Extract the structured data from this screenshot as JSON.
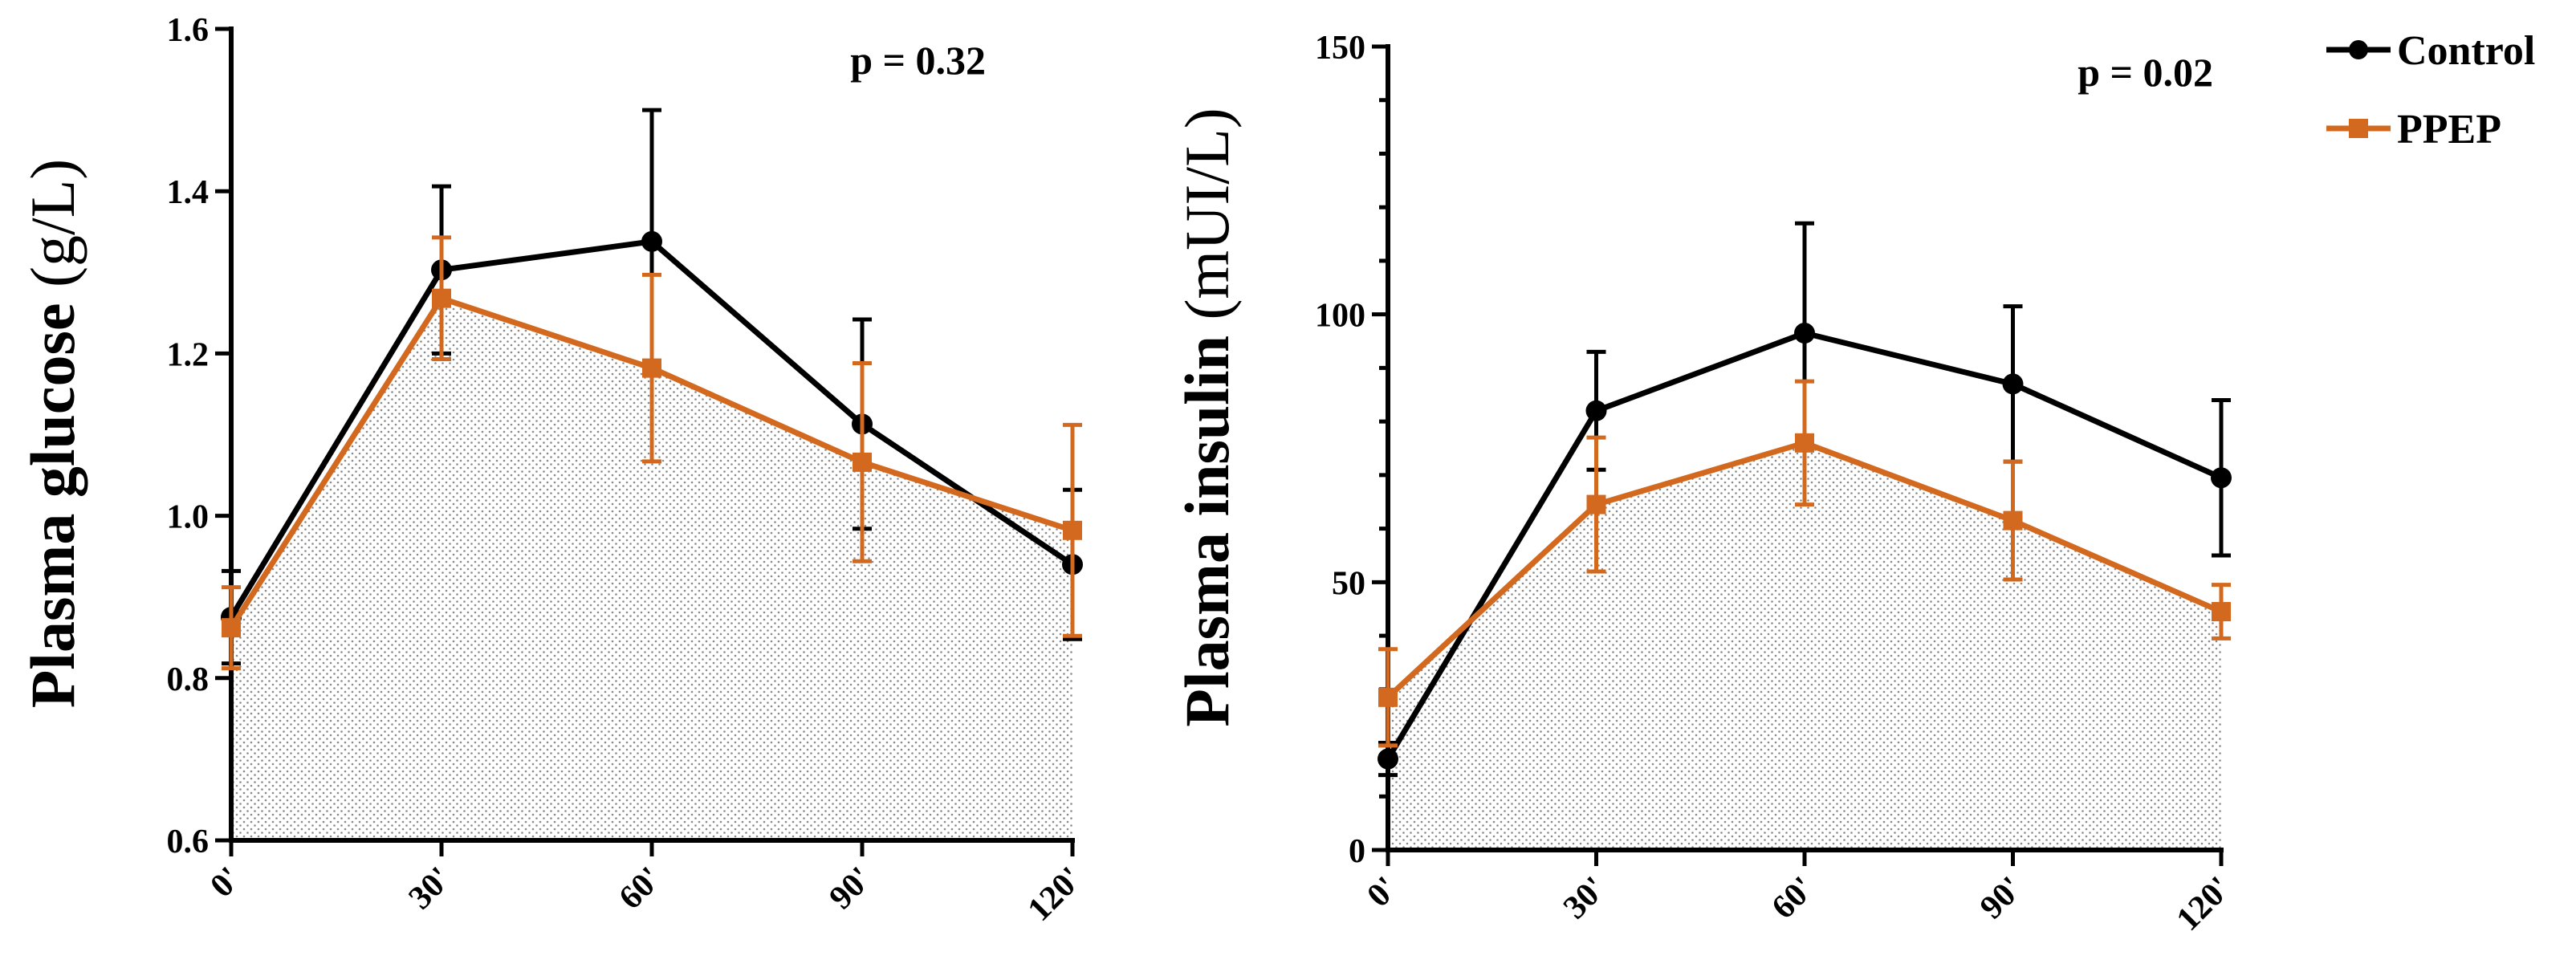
{
  "legend": {
    "items": [
      {
        "label": "Control",
        "color": "#000000",
        "marker": "circle"
      },
      {
        "label": "PPEP",
        "color": "#D2691E",
        "marker": "square"
      }
    ]
  },
  "chart_data": [
    {
      "type": "line",
      "title": "",
      "ylabel_bold": "Plasma glucose",
      "ylabel_unit": "(g/L)",
      "xlabel": "",
      "categories": [
        "0'",
        "30'",
        "60'",
        "90'",
        "120'"
      ],
      "ylim": [
        0.6,
        1.6
      ],
      "yticks": [
        0.6,
        0.8,
        1.0,
        1.2,
        1.4,
        1.6
      ],
      "ytick_labels": [
        "0.6",
        "0.8",
        "1.0",
        "1.2",
        "1.4",
        "1.6"
      ],
      "annotation": "p = 0.32",
      "shaded_series": "PPEP",
      "series": [
        {
          "name": "Control",
          "color": "#000000",
          "marker": "circle",
          "values": [
            0.875,
            1.303,
            1.338,
            1.113,
            0.94
          ],
          "errors": [
            0.057,
            0.103,
            0.162,
            0.129,
            0.092
          ]
        },
        {
          "name": "PPEP",
          "color": "#D2691E",
          "marker": "square",
          "values": [
            0.862,
            1.268,
            1.182,
            1.066,
            0.982
          ],
          "errors": [
            0.05,
            0.075,
            0.115,
            0.122,
            0.13
          ]
        }
      ]
    },
    {
      "type": "line",
      "title": "",
      "ylabel_bold": "Plasma insulin",
      "ylabel_unit": "(mUI/L)",
      "xlabel": "",
      "categories": [
        "0'",
        "30'",
        "60'",
        "90'",
        "120'"
      ],
      "ylim": [
        0,
        150
      ],
      "yticks": [
        0,
        50,
        100,
        150
      ],
      "ytick_labels": [
        "0",
        "50",
        "100",
        "150"
      ],
      "minor_ticks": [
        10,
        20,
        30,
        40,
        60,
        70,
        80,
        90,
        110,
        120,
        130,
        140
      ],
      "annotation": "p = 0.02",
      "shaded_series": "PPEP",
      "series": [
        {
          "name": "Control",
          "color": "#000000",
          "marker": "circle",
          "values": [
            17,
            82,
            96.5,
            87,
            69.5
          ],
          "errors": [
            3,
            11,
            20.5,
            14.5,
            14.5
          ]
        },
        {
          "name": "PPEP",
          "color": "#D2691E",
          "marker": "square",
          "values": [
            28.5,
            64.5,
            76,
            61.5,
            44.5
          ],
          "errors": [
            9,
            12.5,
            11.5,
            11,
            5
          ]
        }
      ]
    }
  ]
}
